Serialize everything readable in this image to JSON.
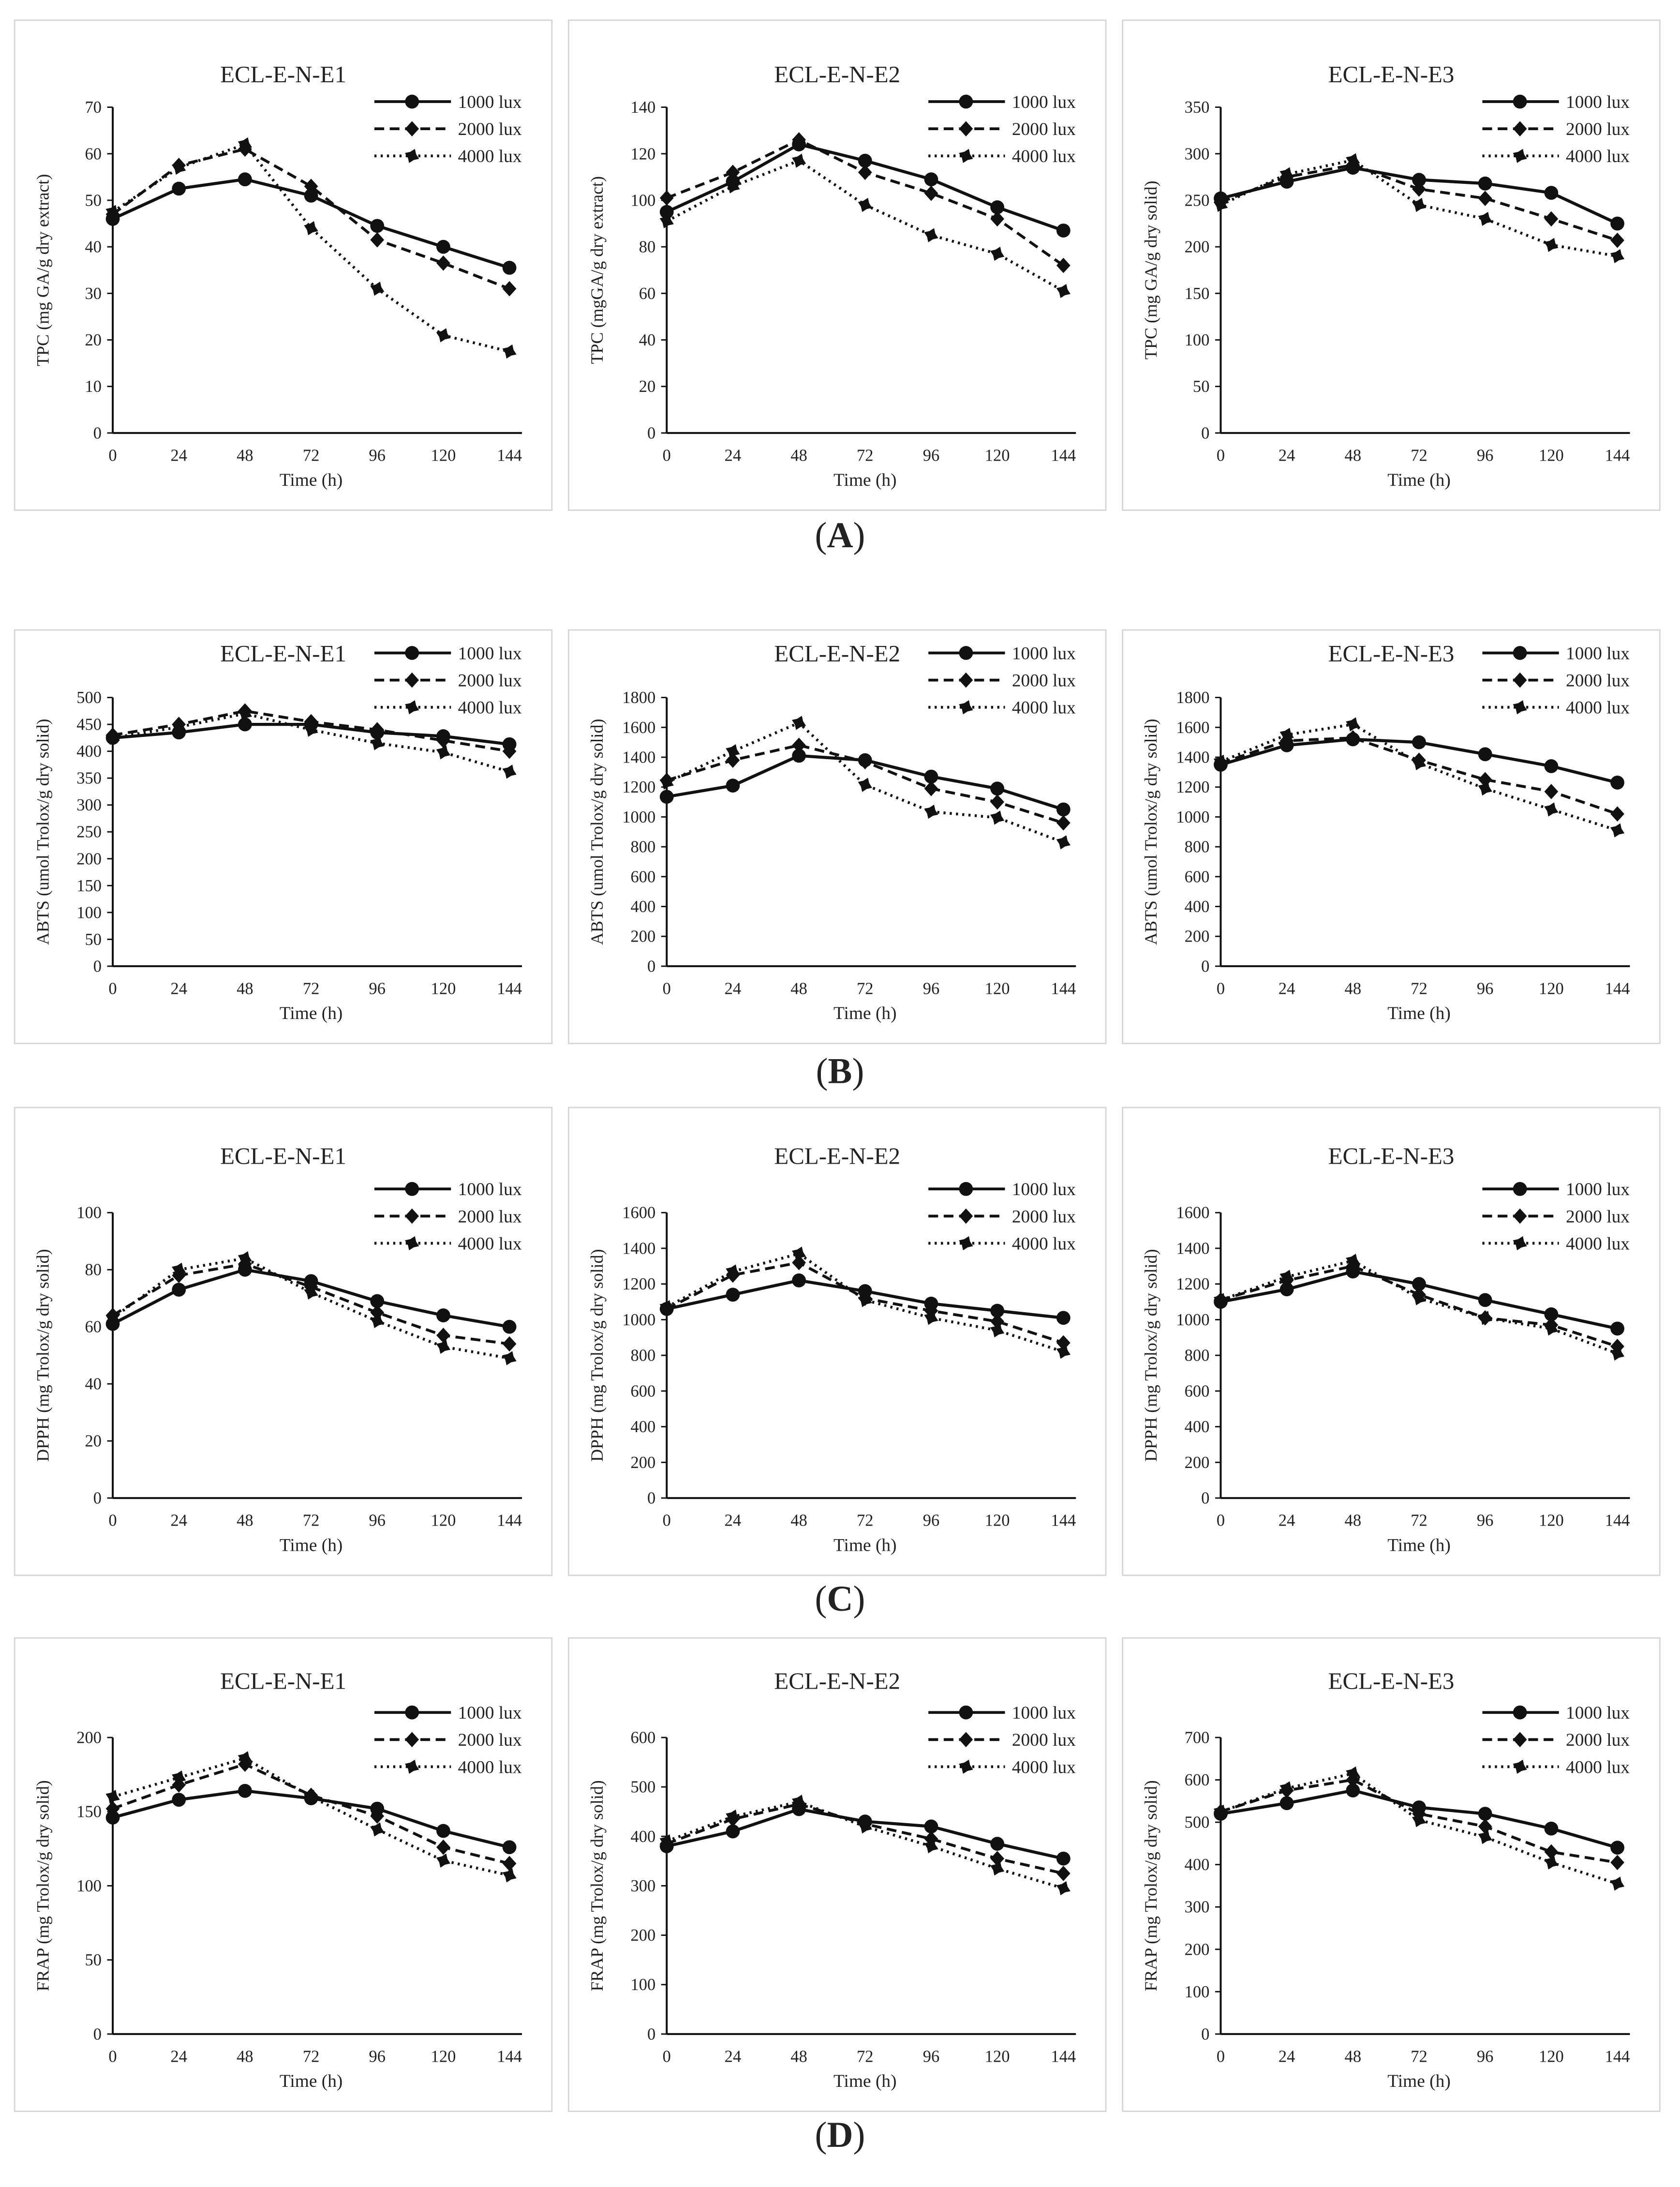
{
  "panel_labels": {
    "open": "(",
    "A": "A",
    "B": "B",
    "C": "C",
    "D": "D",
    "close": ")"
  },
  "chart_data": [
    {
      "type": "line",
      "row": "A",
      "title": "ECL-E-N-E1",
      "xlabel": "Time (h)",
      "ylabel": "TPC (mg GA/g dry extract)",
      "x": [
        0,
        24,
        48,
        72,
        96,
        120,
        144
      ],
      "ylim": [
        0,
        70
      ],
      "ystep": 10,
      "series": [
        {
          "name": "1000 lux",
          "values": [
            46,
            52.5,
            54.5,
            51,
            44.5,
            40,
            35.5
          ]
        },
        {
          "name": "2000 lux",
          "values": [
            47,
            57.5,
            61,
            53,
            41.5,
            36.5,
            31
          ]
        },
        {
          "name": "4000 lux",
          "values": [
            47.5,
            57,
            62,
            44,
            31,
            21,
            17.5
          ]
        }
      ]
    },
    {
      "type": "line",
      "row": "A",
      "title": "ECL-E-N-E2",
      "xlabel": "Time (h)",
      "ylabel": "TPC (mgGA/g dry extract)",
      "x": [
        0,
        24,
        48,
        72,
        96,
        120,
        144
      ],
      "ylim": [
        0,
        140
      ],
      "ystep": 20,
      "series": [
        {
          "name": "1000 lux",
          "values": [
            95,
            108,
            124,
            117,
            109,
            97,
            87
          ]
        },
        {
          "name": "2000 lux",
          "values": [
            101,
            112,
            126,
            112,
            103,
            92,
            72
          ]
        },
        {
          "name": "4000 lux",
          "values": [
            91,
            106,
            117,
            98,
            85,
            77,
            61
          ]
        }
      ]
    },
    {
      "type": "line",
      "row": "A",
      "title": "ECL-E-N-E3",
      "xlabel": "Time (h)",
      "ylabel": "TPC (mg GA/g dry solid)",
      "x": [
        0,
        24,
        48,
        72,
        96,
        120,
        144
      ],
      "ylim": [
        0,
        350
      ],
      "ystep": 50,
      "series": [
        {
          "name": "1000 lux",
          "values": [
            252,
            270,
            285,
            272,
            268,
            258,
            225
          ]
        },
        {
          "name": "2000 lux",
          "values": [
            248,
            275,
            288,
            262,
            252,
            230,
            207
          ]
        },
        {
          "name": "4000 lux",
          "values": [
            245,
            278,
            293,
            245,
            230,
            202,
            190
          ]
        }
      ]
    },
    {
      "type": "line",
      "row": "B",
      "title": "ECL-E-N-E1",
      "xlabel": "Time (h)",
      "ylabel": "ABTS (umol Trolox/g dry solid)",
      "x": [
        0,
        24,
        48,
        72,
        96,
        120,
        144
      ],
      "ylim": [
        0,
        500
      ],
      "ystep": 50,
      "series": [
        {
          "name": "1000 lux",
          "values": [
            425,
            435,
            450,
            450,
            435,
            428,
            413
          ]
        },
        {
          "name": "2000 lux",
          "values": [
            430,
            450,
            475,
            455,
            440,
            420,
            400
          ]
        },
        {
          "name": "4000 lux",
          "values": [
            425,
            445,
            470,
            440,
            415,
            398,
            362
          ]
        }
      ]
    },
    {
      "type": "line",
      "row": "B",
      "title": "ECL-E-N-E2",
      "xlabel": "Time (h)",
      "ylabel": "ABTS (umol Trolox/g dry solid)",
      "x": [
        0,
        24,
        48,
        72,
        96,
        120,
        144
      ],
      "ylim": [
        0,
        1800
      ],
      "ystep": 200,
      "series": [
        {
          "name": "1000 lux",
          "values": [
            1135,
            1210,
            1410,
            1380,
            1270,
            1190,
            1050
          ]
        },
        {
          "name": "2000 lux",
          "values": [
            1245,
            1380,
            1480,
            1370,
            1190,
            1100,
            960
          ]
        },
        {
          "name": "4000 lux",
          "values": [
            1230,
            1440,
            1630,
            1215,
            1035,
            995,
            830
          ]
        }
      ]
    },
    {
      "type": "line",
      "row": "B",
      "title": "ECL-E-N-E3",
      "xlabel": "Time (h)",
      "ylabel": "ABTS (umol Trolox/g dry solid)",
      "x": [
        0,
        24,
        48,
        72,
        96,
        120,
        144
      ],
      "ylim": [
        0,
        1800
      ],
      "ystep": 200,
      "series": [
        {
          "name": "1000 lux",
          "values": [
            1350,
            1480,
            1520,
            1500,
            1420,
            1340,
            1230
          ]
        },
        {
          "name": "2000 lux",
          "values": [
            1360,
            1510,
            1530,
            1380,
            1250,
            1170,
            1020
          ]
        },
        {
          "name": "4000 lux",
          "values": [
            1370,
            1550,
            1620,
            1360,
            1190,
            1050,
            910
          ]
        }
      ]
    },
    {
      "type": "line",
      "row": "C",
      "title": "ECL-E-N-E1",
      "xlabel": "Time (h)",
      "ylabel": "DPPH (mg Trolox/g dry solid)",
      "x": [
        0,
        24,
        48,
        72,
        96,
        120,
        144
      ],
      "ylim": [
        0,
        100
      ],
      "ystep": 20,
      "series": [
        {
          "name": "1000 lux",
          "values": [
            61,
            73,
            80,
            76,
            69,
            64,
            60
          ]
        },
        {
          "name": "2000 lux",
          "values": [
            64,
            78,
            82,
            74,
            65,
            57,
            54
          ]
        },
        {
          "name": "4000 lux",
          "values": [
            63,
            80,
            84,
            72,
            62,
            53,
            49
          ]
        }
      ]
    },
    {
      "type": "line",
      "row": "C",
      "title": "ECL-E-N-E2",
      "xlabel": "Time (h)",
      "ylabel": "DPPH (mg Trolox/g dry solid)",
      "x": [
        0,
        24,
        48,
        72,
        96,
        120,
        144
      ],
      "ylim": [
        0,
        1600
      ],
      "ystep": 200,
      "series": [
        {
          "name": "1000 lux",
          "values": [
            1060,
            1140,
            1220,
            1160,
            1090,
            1050,
            1010
          ]
        },
        {
          "name": "2000 lux",
          "values": [
            1060,
            1250,
            1320,
            1120,
            1050,
            990,
            870
          ]
        },
        {
          "name": "4000 lux",
          "values": [
            1070,
            1270,
            1370,
            1110,
            1010,
            940,
            820
          ]
        }
      ]
    },
    {
      "type": "line",
      "row": "C",
      "title": "ECL-E-N-E3",
      "xlabel": "Time (h)",
      "ylabel": "DPPH (mg Trolox/g dry solid)",
      "x": [
        0,
        24,
        48,
        72,
        96,
        120,
        144
      ],
      "ylim": [
        0,
        1600
      ],
      "ystep": 200,
      "series": [
        {
          "name": "1000 lux",
          "values": [
            1100,
            1170,
            1270,
            1200,
            1110,
            1030,
            950
          ]
        },
        {
          "name": "2000 lux",
          "values": [
            1110,
            1220,
            1300,
            1140,
            1010,
            970,
            850
          ]
        },
        {
          "name": "4000 lux",
          "values": [
            1110,
            1240,
            1330,
            1120,
            1010,
            950,
            810
          ]
        }
      ]
    },
    {
      "type": "line",
      "row": "D",
      "title": "ECL-E-N-E1",
      "xlabel": "Time (h)",
      "ylabel": "FRAP (mg Trolox/g dry solid)",
      "x": [
        0,
        24,
        48,
        72,
        96,
        120,
        144
      ],
      "ylim": [
        0,
        200
      ],
      "ystep": 50,
      "series": [
        {
          "name": "1000 lux",
          "values": [
            146,
            158,
            164,
            159,
            152,
            137,
            126
          ]
        },
        {
          "name": "2000 lux",
          "values": [
            152,
            168,
            182,
            161,
            147,
            126,
            115
          ]
        },
        {
          "name": "4000 lux",
          "values": [
            160,
            173,
            186,
            160,
            138,
            117,
            107
          ]
        }
      ]
    },
    {
      "type": "line",
      "row": "D",
      "title": "ECL-E-N-E2",
      "xlabel": "Time (h)",
      "ylabel": "FRAP (mg Trolox/g dry solid)",
      "x": [
        0,
        24,
        48,
        72,
        96,
        120,
        144
      ],
      "ylim": [
        0,
        600
      ],
      "ystep": 100,
      "series": [
        {
          "name": "1000 lux",
          "values": [
            380,
            410,
            455,
            430,
            420,
            385,
            355
          ]
        },
        {
          "name": "2000 lux",
          "values": [
            385,
            435,
            465,
            425,
            395,
            355,
            325
          ]
        },
        {
          "name": "4000 lux",
          "values": [
            390,
            440,
            470,
            420,
            380,
            335,
            295
          ]
        }
      ]
    },
    {
      "type": "line",
      "row": "D",
      "title": "ECL-E-N-E3",
      "xlabel": "Time (h)",
      "ylabel": "FRAP (mg Trolox/g dry solid)",
      "x": [
        0,
        24,
        48,
        72,
        96,
        120,
        144
      ],
      "ylim": [
        0,
        700
      ],
      "ystep": 100,
      "series": [
        {
          "name": "1000 lux",
          "values": [
            520,
            545,
            575,
            535,
            520,
            485,
            440
          ]
        },
        {
          "name": "2000 lux",
          "values": [
            525,
            575,
            600,
            520,
            490,
            430,
            405
          ]
        },
        {
          "name": "4000 lux",
          "values": [
            525,
            580,
            615,
            505,
            465,
            405,
            355
          ]
        }
      ]
    }
  ]
}
